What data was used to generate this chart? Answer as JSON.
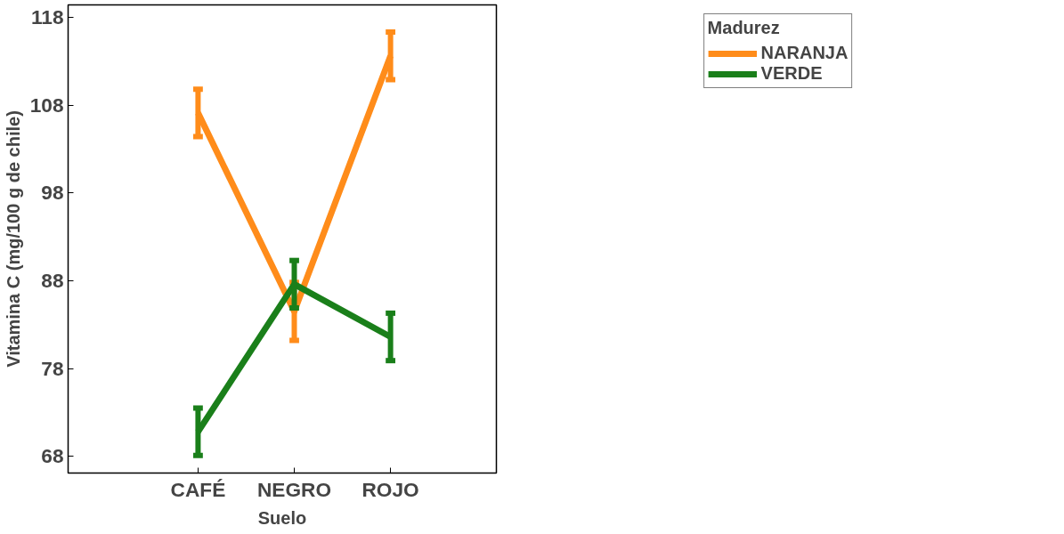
{
  "chart_data": {
    "type": "line",
    "xlabel": "Suelo",
    "ylabel": "Vitamina C (mg/100 g de chile)",
    "legend_title": "Madurez",
    "categories": [
      "CAFÉ",
      "NEGRO",
      "ROJO"
    ],
    "series": [
      {
        "name": "NARANJA",
        "color": "#ff8c1a",
        "values": [
          107.1,
          84.5,
          113.6
        ],
        "errors": [
          2.7,
          3.3,
          2.7
        ]
      },
      {
        "name": "VERDE",
        "color": "#1a7f1a",
        "values": [
          70.8,
          87.6,
          81.6
        ],
        "errors": [
          2.7,
          2.7,
          2.7
        ]
      }
    ],
    "ylim": [
      66.1,
      119.4
    ],
    "yticks": [
      68,
      78,
      88,
      98,
      108,
      118
    ],
    "grid": false,
    "legend": "top right",
    "marker": "none",
    "line_style": "solid"
  }
}
